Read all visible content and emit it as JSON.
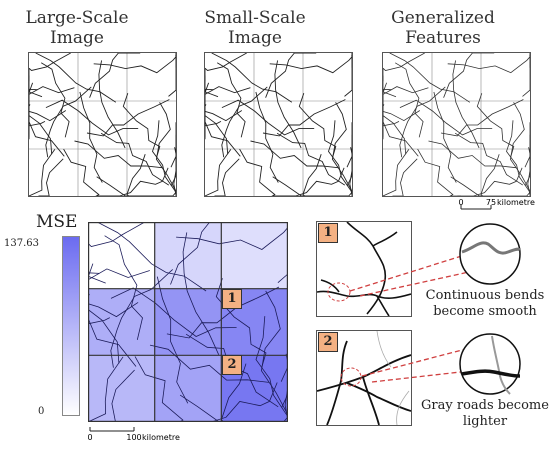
{
  "titles": {
    "large_scale": "Large-Scale Image",
    "small_scale": "Small-Scale Image",
    "generalized": "Generalized Features"
  },
  "colorbar": {
    "title": "MSE",
    "max": "137.63",
    "min": "0"
  },
  "scalebars": {
    "top": {
      "zero": "0",
      "value": "75",
      "unit": "kilometre"
    },
    "bottom": {
      "zero": "0",
      "value": "100",
      "unit": "kilometre"
    }
  },
  "callouts": [
    {
      "number": "1",
      "caption": "Continuous bends become smooth"
    },
    {
      "number": "2",
      "caption": "Gray roads become lighter"
    }
  ],
  "grid_mse": [
    [
      0.0,
      0.28,
      0.22
    ],
    [
      0.55,
      0.72,
      0.82
    ],
    [
      0.48,
      0.62,
      0.92
    ]
  ],
  "colors": {
    "mse_high": "#6b6bf0",
    "mse_low": "#ffffff",
    "badge": "#f4b183",
    "callout_line": "#d04040"
  }
}
